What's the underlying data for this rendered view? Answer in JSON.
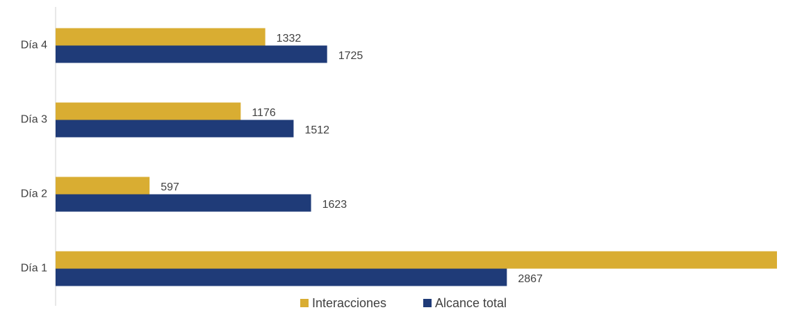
{
  "chart_data": {
    "type": "bar",
    "orientation": "horizontal",
    "categories": [
      "Día 1",
      "Día 2",
      "Día 3",
      "Día 4"
    ],
    "series": [
      {
        "name": "Interacciones",
        "color": "#d9ad32",
        "values": [
          4583,
          597,
          1176,
          1332
        ]
      },
      {
        "name": "Alcance total",
        "color": "#1f3b78",
        "values": [
          2867,
          1623,
          1512,
          1725
        ]
      }
    ],
    "legend": "bottom"
  }
}
